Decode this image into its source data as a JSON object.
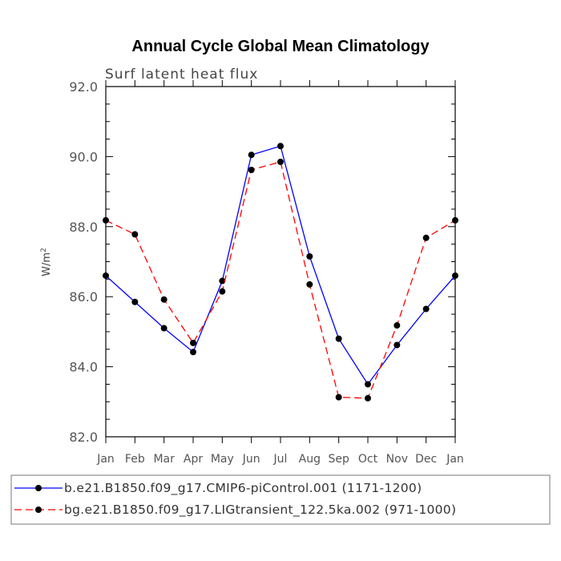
{
  "chart_data": {
    "type": "line",
    "title": "Annual Cycle Global Mean Climatology",
    "subtitle": "Surf latent heat flux",
    "ylabel": "W/m",
    "ylabel_sup": "2",
    "ylim": [
      82.0,
      92.0
    ],
    "yticks": [
      "82.0",
      "84.0",
      "86.0",
      "88.0",
      "90.0",
      "92.0"
    ],
    "categories": [
      "Jan",
      "Feb",
      "Mar",
      "Apr",
      "May",
      "Jun",
      "Jul",
      "Aug",
      "Sep",
      "Oct",
      "Nov",
      "Dec",
      "Jan"
    ],
    "series": [
      {
        "name": "b.e21.B1850.f09_g17.CMIP6-piControl.001 (1171-1200)",
        "color": "#0000ff",
        "dash": "solid",
        "values": [
          86.6,
          85.85,
          85.1,
          84.42,
          86.45,
          90.05,
          90.3,
          87.15,
          84.8,
          83.5,
          84.62,
          85.65,
          86.6
        ]
      },
      {
        "name": "bg.e21.B1850.f09_g17.LIGtransient_122.5ka.002 (971-1000)",
        "color": "#ff0000",
        "dash": "dashed",
        "values": [
          88.18,
          87.78,
          85.92,
          84.68,
          86.15,
          89.62,
          89.85,
          86.35,
          83.13,
          83.1,
          85.18,
          87.68,
          88.18
        ]
      }
    ],
    "legend_position": "bottom"
  }
}
